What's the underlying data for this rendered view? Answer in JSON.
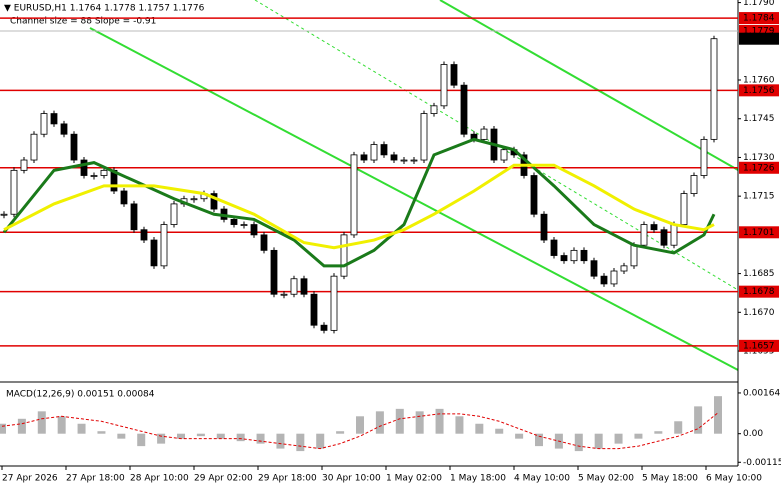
{
  "chart_data": [
    {
      "type": "candlestick",
      "title": "▼ EURUSD,H1  1.1764 1.1778 1.1757 1.1776",
      "subtitle": "Channel size = 88 Slope = -0.91",
      "close": [
        1.1708,
        1.1725,
        1.1729,
        1.1739,
        1.1747,
        1.1743,
        1.1739,
        1.1729,
        1.1723,
        1.1723,
        1.1725,
        1.1717,
        1.1712,
        1.1702,
        1.1698,
        1.1688,
        1.1704,
        1.1712,
        1.1714,
        1.1714,
        1.1716,
        1.171,
        1.1706,
        1.1704,
        1.1704,
        1.17,
        1.1694,
        1.1677,
        1.1677,
        1.1683,
        1.1677,
        1.1665,
        1.1663,
        1.1684,
        1.17,
        1.1731,
        1.1729,
        1.1735,
        1.1731,
        1.1729,
        1.1729,
        1.1729,
        1.1747,
        1.175,
        1.1766,
        1.1758,
        1.1739,
        1.1737,
        1.1741,
        1.1729,
        1.1733,
        1.1731,
        1.1723,
        1.1708,
        1.1698,
        1.1692,
        1.169,
        1.1694,
        1.169,
        1.1684,
        1.1681,
        1.1686,
        1.1688,
        1.1696,
        1.1704,
        1.1702,
        1.1696,
        1.1704,
        1.1716,
        1.1723,
        1.1737,
        1.1776
      ],
      "series": [
        {
          "color": "#1a7a1a",
          "x": [
            0,
            5,
            9,
            13,
            17,
            21,
            25,
            29,
            32,
            34,
            37,
            40,
            43,
            47,
            51,
            55,
            59,
            63,
            67,
            70,
            71
          ],
          "values": [
            1.1701,
            1.1725,
            1.1728,
            1.1721,
            1.1714,
            1.1708,
            1.1706,
            1.1698,
            1.1688,
            1.1688,
            1.1694,
            1.1704,
            1.1731,
            1.1737,
            1.1733,
            1.1719,
            1.1704,
            1.1696,
            1.1693,
            1.17,
            1.1708
          ]
        },
        {
          "color": "#f0f000",
          "x": [
            0,
            5,
            10,
            15,
            20,
            25,
            30,
            33,
            37,
            40,
            43,
            47,
            51,
            55,
            59,
            63,
            67,
            70,
            71
          ],
          "values": [
            1.1702,
            1.1712,
            1.1719,
            1.1719,
            1.1716,
            1.1708,
            1.1697,
            1.1695,
            1.1698,
            1.1702,
            1.1708,
            1.1717,
            1.1727,
            1.1727,
            1.1719,
            1.171,
            1.1704,
            1.1702,
            1.1704
          ]
        }
      ],
      "levels": [
        {
          "value": 1.1784,
          "color": "#e00000"
        },
        {
          "value": 1.1756,
          "color": "#e00000"
        },
        {
          "value": 1.1726,
          "color": "#e00000"
        },
        {
          "value": 1.1701,
          "color": "#e00000"
        },
        {
          "value": 1.1678,
          "color": "#e00000"
        },
        {
          "value": 1.1657,
          "color": "#e00000"
        }
      ],
      "ask_price": 1.1779,
      "current_price": 1.1776,
      "ylim": [
        1.1643,
        1.1791
      ],
      "yticks": [
        {
          "value": 1.179,
          "label": "1.1790"
        },
        {
          "value": 1.176,
          "label": "1.1760"
        },
        1.1745,
        {
          "value": 1.173,
          "label": "1.1730"
        },
        1.1715,
        1.1685,
        {
          "value": 1.167,
          "label": "1.1670"
        },
        1.1655
      ],
      "time_labels": [
        "27 Apr 2026",
        "27 Apr 18:00",
        "28 Apr 10:00",
        "29 Apr 02:00",
        "29 Apr 18:00",
        "30 Apr 10:00",
        "1 May 02:00",
        "1 May 18:00",
        "4 May 10:00",
        "5 May 02:00",
        "5 May 18:00",
        "6 May 10:00"
      ]
    },
    {
      "type": "macd",
      "title": "MACD(12,26,9) 0.00151 0.00084",
      "values": [
        0.0004,
        0.0006,
        0.0009,
        0.0007,
        0.0004,
        0.0001,
        -0.0002,
        -0.0005,
        -0.0004,
        -0.0002,
        -0.0001,
        -0.0002,
        -0.0003,
        -0.0004,
        -0.0006,
        -0.0007,
        -0.0006,
        0.0001,
        0.0007,
        0.0009,
        0.001,
        0.0009,
        0.001,
        0.0007,
        0.0004,
        0.0002,
        -0.0002,
        -0.0005,
        -0.0006,
        -0.0007,
        -0.0006,
        -0.0004,
        -0.0002,
        0.0001,
        0.0005,
        0.0011,
        0.00151
      ],
      "color": "#b4b4b4",
      "signal": {
        "color": "#e00000",
        "values": [
          0.0003,
          0.0004,
          0.0006,
          0.0007,
          0.0006,
          0.0005,
          0.0003,
          0.0001,
          -0.0001,
          -0.0002,
          -0.0002,
          -0.0002,
          -0.0002,
          -0.0003,
          -0.0004,
          -0.0005,
          -0.0006,
          -0.0004,
          -0.0001,
          0.0003,
          0.0006,
          0.0007,
          0.0008,
          0.0008,
          0.0007,
          0.0005,
          0.0002,
          -0.0001,
          -0.0003,
          -0.0005,
          -0.0006,
          -0.0006,
          -0.0005,
          -0.0003,
          -0.0001,
          0.0002,
          0.00084
        ]
      },
      "ylim": [
        -0.0013,
        0.002
      ],
      "yticks": [
        0.00164,
        {
          "value": 0,
          "label": "0.00"
        },
        -0.00115
      ]
    }
  ]
}
